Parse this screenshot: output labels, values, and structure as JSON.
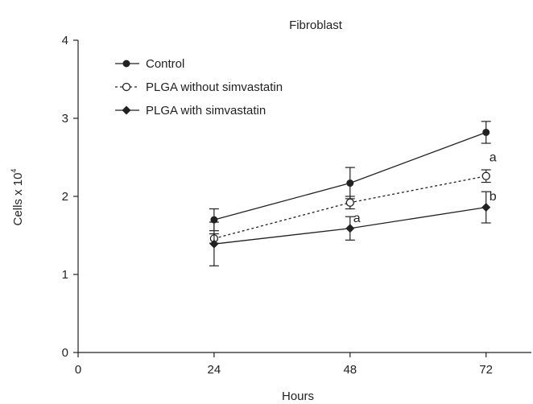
{
  "chart_data": {
    "type": "line",
    "title": "Fibroblast",
    "xlabel": "Hours",
    "ylabel": "Cells x 10",
    "ylabel_exponent": "4",
    "xlim": [
      0,
      80
    ],
    "ylim": [
      0,
      4
    ],
    "x_ticks": [
      0,
      24,
      48,
      72
    ],
    "y_ticks": [
      0,
      1,
      2,
      3,
      4
    ],
    "grid": false,
    "legend_position": "top-left",
    "x": [
      24,
      48,
      72
    ],
    "series": [
      {
        "name": "Control",
        "marker": "filled-circle",
        "line_style": "solid",
        "values": [
          1.7,
          2.17,
          2.82
        ],
        "errors": [
          0.14,
          0.2,
          0.14
        ]
      },
      {
        "name": "PLGA without simvastatin",
        "marker": "open-circle",
        "line_style": "dotted",
        "values": [
          1.46,
          1.92,
          2.26
        ],
        "errors": [
          0.06,
          0.08,
          0.08
        ]
      },
      {
        "name": "PLGA with simvastatin",
        "marker": "filled-diamond",
        "line_style": "solid",
        "values": [
          1.39,
          1.59,
          1.86
        ],
        "errors": [
          0.28,
          0.15,
          0.2
        ]
      }
    ],
    "annotations": [
      {
        "text": "a",
        "x": 48,
        "y": 1.72
      },
      {
        "text": "a",
        "x": 72,
        "y": 2.5
      },
      {
        "text": "b",
        "x": 72,
        "y": 2.0
      }
    ]
  }
}
